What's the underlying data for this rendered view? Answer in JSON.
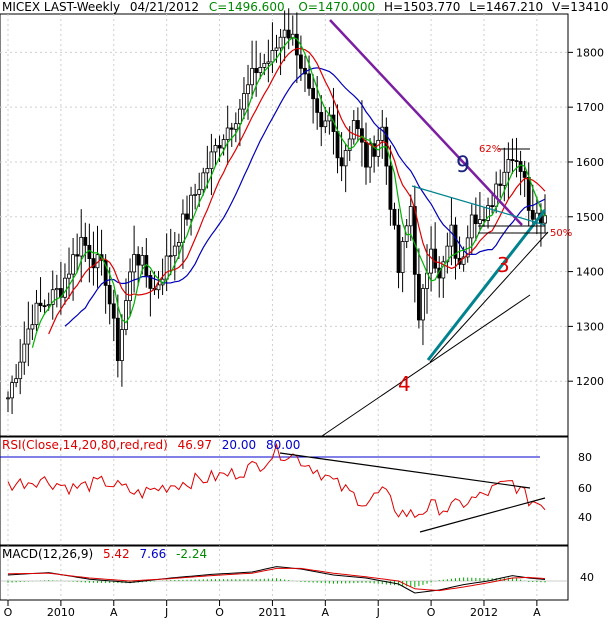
{
  "header": {
    "symbol": "MICEX LAST-Weekly",
    "date": "04/21/2012",
    "close": "C=1496.600",
    "open": "O=1470.000",
    "high": "H=1503.770",
    "low": "L=1467.210",
    "volume": "V=13410"
  },
  "colors": {
    "price_bars": "#000000",
    "ma_fast": "#00b400",
    "ma_mid": "#dd0000",
    "ma_slow": "#0000bb",
    "trend_purple": "#7b1fa2",
    "trend_teal": "#00838f",
    "rsi_line": "#dd0000",
    "rsi_level_80": "#0000cc",
    "rsi_level_20": "#000000",
    "macd_line": "#000000",
    "macd_signal": "#dd0000",
    "macd_hist": "#00aa00",
    "wave_9": "#1a237e",
    "wave_3": "#dd0000",
    "wave_4": "#dd0000",
    "fib_text": "#dd0000"
  },
  "annotations": {
    "wave_9": "9",
    "wave_3": "3",
    "wave_4": "4",
    "fib_62": "62%",
    "fib_50": "50%"
  },
  "rsi_panel": {
    "label": "RSI(Close,14,20,80,red,red)",
    "value": "46.97",
    "lower": "20.00",
    "upper": "80.00",
    "ticks": [
      "80",
      "60",
      "40"
    ]
  },
  "macd_panel": {
    "label": "MACD(12,26,9)",
    "macd": "5.42",
    "signal": "7.66",
    "hist": "-2.24",
    "ticks": [
      "40"
    ]
  },
  "chart_data": {
    "type": "line",
    "title": "MICEX LAST-Weekly",
    "price_axis": [
      "1800",
      "1700",
      "1600",
      "1500",
      "1400",
      "1300",
      "1200"
    ],
    "ylim": [
      1100,
      1870
    ],
    "x_labels": [
      "O",
      "2010",
      "A",
      "J",
      "O",
      "2011",
      "A",
      "J",
      "O",
      "2012",
      "A"
    ],
    "x_label_weeks": [
      0,
      13,
      26,
      39,
      52,
      65,
      78,
      91,
      104,
      117,
      130
    ],
    "grid": true,
    "price_close_anchors": {
      "week": [
        0,
        6,
        13,
        18,
        24,
        27,
        31,
        36,
        42,
        47,
        52,
        57,
        61,
        65,
        68,
        71,
        74,
        77,
        79,
        82,
        85,
        88,
        92,
        96,
        99,
        101,
        104,
        106,
        109,
        111,
        114,
        117,
        120,
        124,
        127,
        128,
        130,
        132
      ],
      "close": [
        1170,
        1320,
        1370,
        1460,
        1390,
        1250,
        1440,
        1365,
        1470,
        1560,
        1640,
        1700,
        1770,
        1790,
        1850,
        1810,
        1720,
        1650,
        1680,
        1600,
        1680,
        1600,
        1660,
        1400,
        1520,
        1300,
        1460,
        1380,
        1470,
        1400,
        1520,
        1480,
        1560,
        1620,
        1580,
        1500,
        1520,
        1497
      ]
    },
    "wave_labels": [
      {
        "label": "9",
        "week": 110,
        "value": 1595
      },
      {
        "label": "3",
        "week": 119,
        "value": 1420
      },
      {
        "label": "4",
        "week": 99,
        "value": 1210
      }
    ],
    "fib_levels": [
      {
        "label": "62%",
        "value": 1630
      },
      {
        "label": "50%",
        "value": 1480
      }
    ],
    "rsi": {
      "ylim": [
        20,
        90
      ],
      "upper": 80,
      "week": [
        0,
        8,
        16,
        24,
        32,
        40,
        48,
        56,
        62,
        66,
        70,
        76,
        82,
        88,
        92,
        96,
        100,
        104,
        108,
        112,
        116,
        120,
        124,
        128,
        132
      ],
      "value": [
        60,
        64,
        58,
        62,
        54,
        60,
        64,
        68,
        74,
        82,
        80,
        70,
        58,
        48,
        56,
        42,
        40,
        46,
        44,
        48,
        52,
        58,
        62,
        50,
        47
      ]
    },
    "macd": {
      "week": [
        0,
        10,
        20,
        30,
        40,
        50,
        60,
        66,
        72,
        80,
        88,
        96,
        100,
        106,
        112,
        118,
        124,
        128,
        132
      ],
      "macd": [
        20,
        28,
        6,
        -5,
        10,
        22,
        30,
        48,
        40,
        20,
        10,
        -10,
        -40,
        -30,
        -12,
        0,
        18,
        10,
        5
      ],
      "signal": [
        24,
        26,
        10,
        0,
        8,
        18,
        26,
        42,
        42,
        26,
        14,
        0,
        -26,
        -32,
        -20,
        -6,
        10,
        12,
        8
      ]
    }
  }
}
